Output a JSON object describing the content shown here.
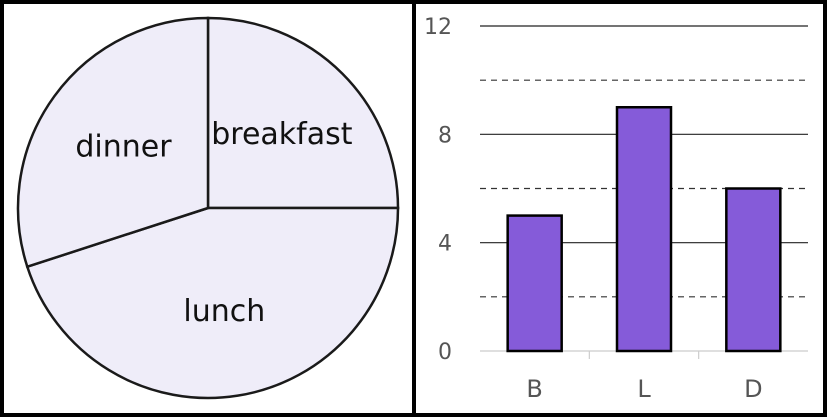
{
  "colors": {
    "pie_fill": "#efedf9",
    "bar_fill": "#855bd9",
    "stroke": "#000000"
  },
  "chart_data": [
    {
      "type": "pie",
      "slices": [
        {
          "label": "breakfast",
          "value": 5
        },
        {
          "label": "lunch",
          "value": 9
        },
        {
          "label": "dinner",
          "value": 6
        }
      ]
    },
    {
      "type": "bar",
      "categories": [
        "B",
        "L",
        "D"
      ],
      "values": [
        5,
        9,
        6
      ],
      "ylim": [
        0,
        12
      ],
      "yticks": [
        "0",
        "4",
        "8",
        "12"
      ],
      "grid": "solid at labeled ticks, dashed halfway between"
    }
  ]
}
